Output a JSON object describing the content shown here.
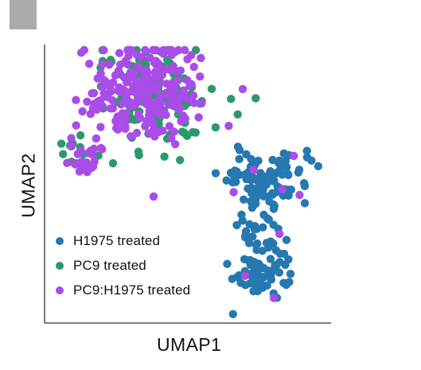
{
  "chart_data": {
    "type": "scatter",
    "xlabel": "UMAP1",
    "ylabel": "UMAP2",
    "xlim": [
      0,
      10
    ],
    "ylim": [
      0,
      10
    ],
    "grid": false,
    "legend": "bottom-left",
    "series": [
      {
        "name": "H1975 treated",
        "color": "#2678b0",
        "clusters": [
          {
            "cx": 7.8,
            "cy": 5.2,
            "sx": 0.72,
            "sy": 0.55,
            "count": 100
          },
          {
            "cx": 7.5,
            "cy": 3.4,
            "sx": 0.4,
            "sy": 0.75,
            "count": 40
          },
          {
            "cx": 7.6,
            "cy": 1.8,
            "sx": 0.55,
            "sy": 0.38,
            "count": 55
          }
        ]
      },
      {
        "name": "PC9 treated",
        "color": "#2b9a6b",
        "clusters": [
          {
            "cx": 3.8,
            "cy": 8.2,
            "sx": 0.95,
            "sy": 0.95,
            "count": 120
          },
          {
            "cx": 1.2,
            "cy": 6.1,
            "sx": 0.45,
            "sy": 0.28,
            "count": 12
          }
        ]
      },
      {
        "name": "PC9:H1975 treated",
        "color": "#a94ce8",
        "clusters": [
          {
            "cx": 3.6,
            "cy": 8.3,
            "sx": 1.0,
            "sy": 0.9,
            "count": 220
          },
          {
            "cx": 1.4,
            "cy": 6.0,
            "sx": 0.5,
            "sy": 0.35,
            "count": 24
          },
          {
            "cx": 1.8,
            "cy": 7.6,
            "sx": 0.4,
            "sy": 0.35,
            "count": 10
          }
        ]
      },
      {
        "name": "PC9:H1975 treated",
        "color": "#a94ce8",
        "points": [
          [
            8.7,
            6.0
          ],
          [
            8.3,
            4.8
          ],
          [
            8.2,
            3.2
          ],
          [
            7.0,
            1.7
          ],
          [
            8.0,
            0.9
          ],
          [
            6.6,
            4.7
          ],
          [
            8.9,
            4.6
          ],
          [
            7.3,
            5.5
          ]
        ]
      }
    ]
  }
}
